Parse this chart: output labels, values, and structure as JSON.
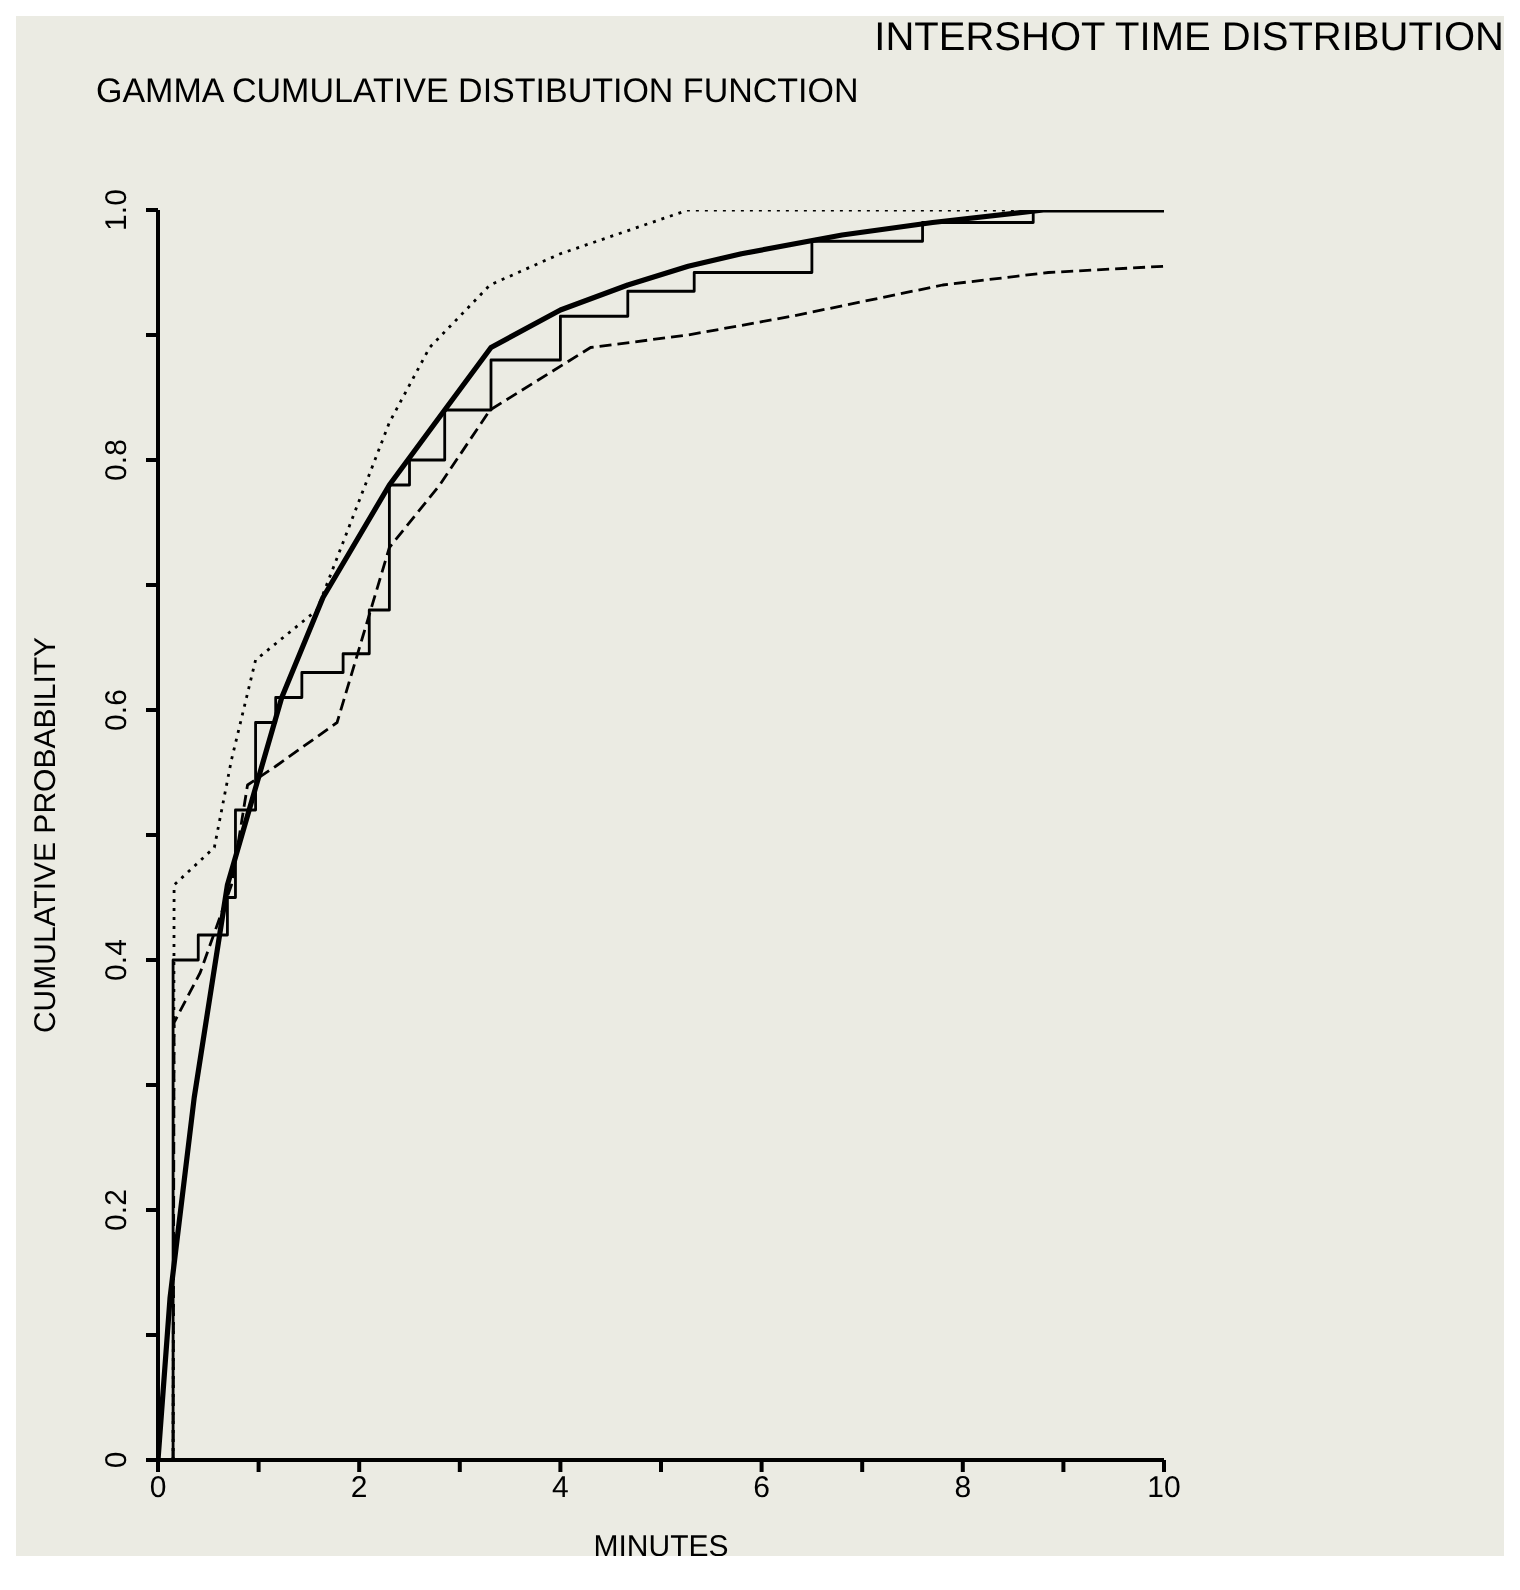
{
  "chart_data": {
    "type": "line",
    "title": "INTERSHOT TIME DISTRIBUTION",
    "subtitle": "GAMMA CUMULATIVE DISTIBUTION FUNCTION",
    "xlabel": "MINUTES",
    "ylabel": "CUMULATIVE PROBABILITY",
    "xlim": [
      0,
      10
    ],
    "ylim": [
      0,
      1
    ],
    "xticks": [
      0,
      {
        "value": 1,
        "label": null
      },
      2,
      {
        "value": 3,
        "label": null
      },
      4,
      {
        "value": 5,
        "label": null
      },
      6,
      {
        "value": 7,
        "label": null
      },
      8,
      {
        "value": 9,
        "label": null
      },
      10
    ],
    "yticks": [
      0,
      {
        "value": 0.1,
        "label": null
      },
      0.2,
      {
        "value": 0.3,
        "label": null
      },
      0.4,
      {
        "value": 0.5,
        "label": null
      },
      0.6,
      {
        "value": 0.7,
        "label": null
      },
      0.8,
      {
        "value": 0.9,
        "label": null
      },
      {
        "value": 1,
        "label": "1.0"
      }
    ],
    "grid": false,
    "legend": false,
    "marker": "none",
    "series": [
      {
        "type": "line",
        "color": "#000000",
        "line_style": "solid",
        "x": [
          0,
          0.12,
          0.36,
          0.69,
          1.23,
          1.64,
          2.3,
          2.85,
          3.31,
          4.0,
          4.67,
          5.27,
          5.8,
          6.8,
          7.7,
          8.8,
          10
        ],
        "values": [
          0,
          0.13,
          0.29,
          0.46,
          0.61,
          0.69,
          0.78,
          0.84,
          0.89,
          0.92,
          0.94,
          0.955,
          0.965,
          0.98,
          0.99,
          1.0,
          1.0
        ]
      },
      {
        "type": "step",
        "color": "#000000",
        "line_style": "solid",
        "x": [
          0.12,
          0.15,
          0.4,
          0.69,
          0.77,
          0.97,
          1.17,
          1.43,
          1.84,
          2.1,
          2.3,
          2.5,
          2.85,
          3.31,
          4.0,
          4.67,
          5.33,
          6.5,
          7.6,
          8.7,
          10
        ],
        "values": [
          0,
          0.4,
          0.42,
          0.45,
          0.52,
          0.59,
          0.61,
          0.63,
          0.645,
          0.68,
          0.78,
          0.8,
          0.84,
          0.88,
          0.915,
          0.935,
          0.95,
          0.975,
          0.99,
          1.0,
          1.0
        ]
      },
      {
        "type": "line",
        "color": "#000000",
        "line_style": "dotted",
        "x": [
          0.15,
          0.16,
          0.56,
          0.73,
          0.97,
          1.58,
          2.3,
          2.7,
          3.3,
          4.0,
          5.27,
          10
        ],
        "values": [
          0,
          0.46,
          0.49,
          0.56,
          0.64,
          0.68,
          0.83,
          0.89,
          0.94,
          0.965,
          1.0,
          1.0
        ]
      },
      {
        "type": "line",
        "color": "#000000",
        "line_style": "dashed",
        "x": [
          0.15,
          0.16,
          0.42,
          0.73,
          0.89,
          1.17,
          1.78,
          2.04,
          2.3,
          2.8,
          3.3,
          4.3,
          5.27,
          6.3,
          7.8,
          8.85,
          10
        ],
        "values": [
          0,
          0.35,
          0.39,
          0.46,
          0.54,
          0.555,
          0.59,
          0.66,
          0.73,
          0.78,
          0.84,
          0.89,
          0.9,
          0.915,
          0.94,
          0.95,
          0.955
        ]
      }
    ]
  }
}
